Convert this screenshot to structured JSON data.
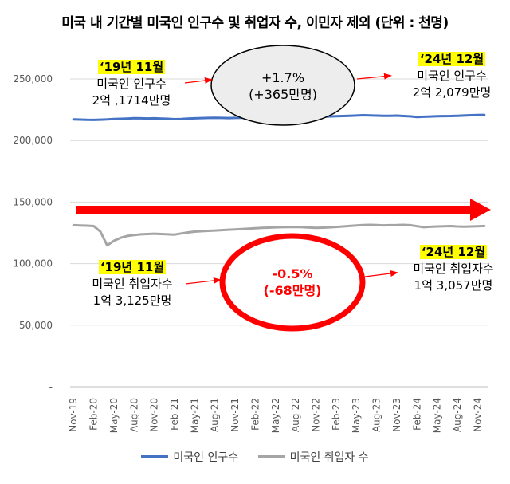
{
  "title": "미국 내 기간별 미국인 인구수 및 취업자 수, 이민자 제외 (단위 : 천명)",
  "colors": {
    "population": "#4472C4",
    "employed": "#A5A5A5",
    "arrow": "#FF0000",
    "highlight": "#FFFF00",
    "bubble_fill": "#EDEDED"
  },
  "annotations": {
    "pop_start_date": "‘19년 11월",
    "pop_start_label": "미국인 인구수",
    "pop_start_value": "2억 ,1714만명",
    "pop_end_date": "‘24년 12월",
    "pop_end_label": "미국인 인구수",
    "pop_end_value": "2억 2,079만명",
    "pop_change_pct": "+1.7%",
    "pop_change_abs": "(+365만명)",
    "emp_start_date": "‘19년 11월",
    "emp_start_label": "미국인 취업자수",
    "emp_start_value": "1억 3,125만명",
    "emp_end_date": "‘24년 12월",
    "emp_end_label": "미국인 취업자수",
    "emp_end_value": "1억 3,057만명",
    "emp_change_pct": "-0.5%",
    "emp_change_abs": "(-68만명)"
  },
  "chart_data": {
    "type": "line",
    "title": "미국 내 기간별 미국인 인구수 및 취업자 수, 이민자 제외 (단위 : 천명)",
    "ylim": [
      0,
      250000
    ],
    "yticks": [
      "-",
      "50,000",
      "100,000",
      "150,000",
      "200,000",
      "250,000"
    ],
    "grid": true,
    "legend_position": "bottom",
    "x_tick_labels": [
      "Nov-19",
      "Feb-20",
      "May-20",
      "Aug-20",
      "Nov-20",
      "Feb-21",
      "May-21",
      "Aug-21",
      "Nov-21",
      "Feb-22",
      "May-22",
      "Aug-22",
      "Nov-22",
      "Feb-23",
      "May-23",
      "Aug-23",
      "Nov-23",
      "Feb-24",
      "May-24",
      "Aug-24",
      "Nov-24"
    ],
    "x": [
      "Nov-19",
      "Dec-19",
      "Jan-20",
      "Feb-20",
      "Mar-20",
      "Apr-20",
      "May-20",
      "Jun-20",
      "Jul-20",
      "Aug-20",
      "Sep-20",
      "Oct-20",
      "Nov-20",
      "Dec-20",
      "Jan-21",
      "Feb-21",
      "Mar-21",
      "Apr-21",
      "May-21",
      "Jun-21",
      "Jul-21",
      "Aug-21",
      "Sep-21",
      "Oct-21",
      "Nov-21",
      "Dec-21",
      "Jan-22",
      "Feb-22",
      "Mar-22",
      "Apr-22",
      "May-22",
      "Jun-22",
      "Jul-22",
      "Aug-22",
      "Sep-22",
      "Oct-22",
      "Nov-22",
      "Dec-22",
      "Jan-23",
      "Feb-23",
      "Mar-23",
      "Apr-23",
      "May-23",
      "Jun-23",
      "Jul-23",
      "Aug-23",
      "Sep-23",
      "Oct-23",
      "Nov-23",
      "Dec-23",
      "Jan-24",
      "Feb-24",
      "Mar-24",
      "Apr-24",
      "May-24",
      "Jun-24",
      "Jul-24",
      "Aug-24",
      "Sep-24",
      "Oct-24",
      "Nov-24",
      "Dec-24"
    ],
    "series": [
      {
        "name": "미국인 인구수",
        "values": [
          217140,
          217000,
          216800,
          216700,
          216900,
          217100,
          217400,
          217600,
          217800,
          218100,
          218000,
          217900,
          218000,
          217800,
          217600,
          217300,
          217500,
          217800,
          218000,
          218200,
          218300,
          218400,
          218300,
          218200,
          218300,
          218400,
          218500,
          218600,
          218700,
          218800,
          218900,
          219000,
          219100,
          219100,
          219200,
          219200,
          219300,
          219400,
          219500,
          219700,
          219900,
          220100,
          220300,
          220500,
          220400,
          220200,
          220000,
          220100,
          220200,
          219900,
          219600,
          219100,
          219300,
          219500,
          219700,
          219800,
          219900,
          220100,
          220300,
          220500,
          220700,
          220790
        ]
      },
      {
        "name": "미국인 취업자 수",
        "values": [
          131250,
          131000,
          130800,
          130500,
          126000,
          114800,
          118500,
          121000,
          122500,
          123200,
          123800,
          124000,
          124300,
          124000,
          123800,
          123600,
          124500,
          125300,
          126000,
          126300,
          126600,
          126900,
          127200,
          127500,
          127800,
          128100,
          128400,
          128700,
          129000,
          129200,
          129500,
          129600,
          129700,
          129800,
          129600,
          129300,
          129000,
          129200,
          129500,
          129800,
          130200,
          130600,
          131000,
          131300,
          131500,
          131300,
          131100,
          131200,
          131300,
          131500,
          131200,
          130400,
          129600,
          129900,
          130200,
          130300,
          130500,
          130200,
          130000,
          130200,
          130400,
          130570
        ]
      }
    ]
  },
  "legend": {
    "pop_label": "미국인 인구수",
    "emp_label": "미국인 취업자 수"
  }
}
